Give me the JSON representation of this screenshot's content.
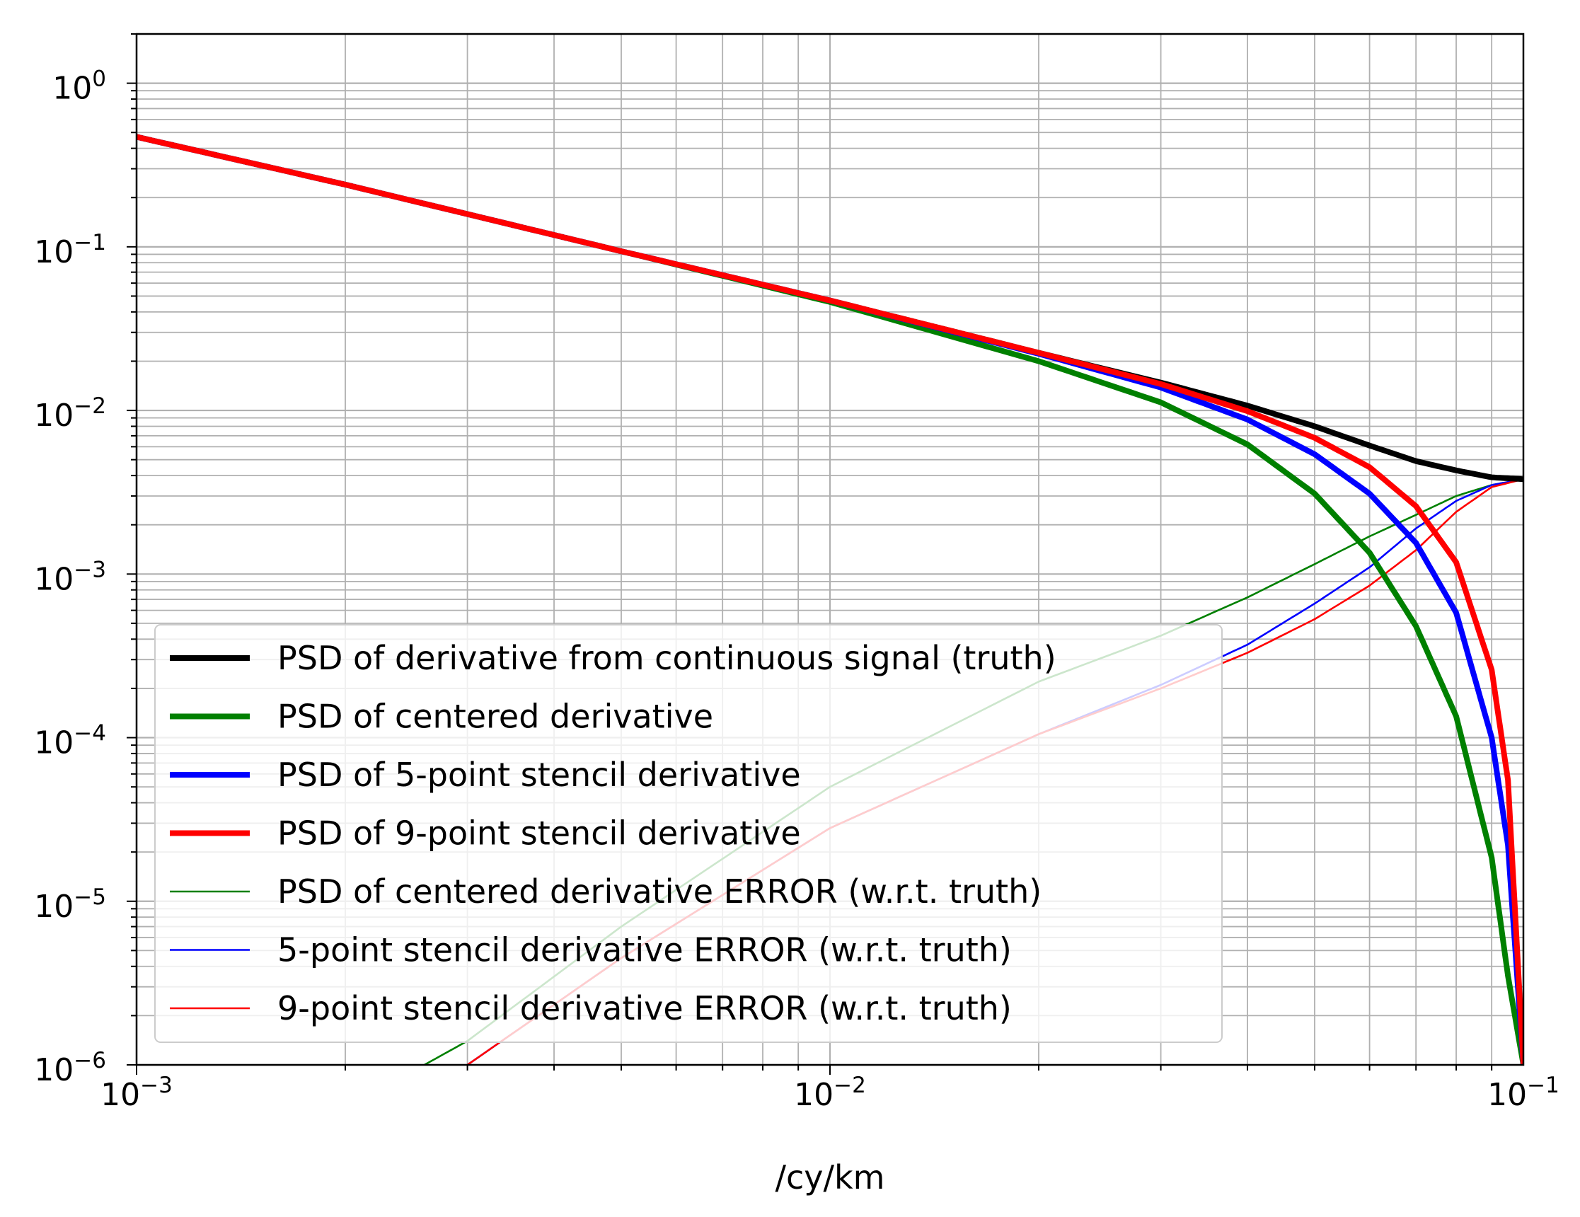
{
  "chart_data": {
    "type": "line",
    "title": "",
    "xlabel": "/cy/km",
    "ylabel": "",
    "x_scale": "log",
    "y_scale": "log",
    "xlim": [
      0.001,
      0.1
    ],
    "ylim": [
      1e-06,
      2
    ],
    "grid": "major and minor",
    "legend_position": "lower-left",
    "x_ticks": [
      {
        "value": 0.001,
        "base": "10",
        "exp": "−3"
      },
      {
        "value": 0.01,
        "base": "10",
        "exp": "−2"
      },
      {
        "value": 0.1,
        "base": "10",
        "exp": "−1"
      }
    ],
    "y_ticks": [
      {
        "value": 1,
        "base": "10",
        "exp": "0"
      },
      {
        "value": 0.1,
        "base": "10",
        "exp": "−1"
      },
      {
        "value": 0.01,
        "base": "10",
        "exp": "−2"
      },
      {
        "value": 0.001,
        "base": "10",
        "exp": "−3"
      },
      {
        "value": 0.0001,
        "base": "10",
        "exp": "−4"
      },
      {
        "value": 1e-05,
        "base": "10",
        "exp": "−5"
      },
      {
        "value": 1e-06,
        "base": "10",
        "exp": "−6"
      }
    ],
    "series": [
      {
        "name": "PSD of derivative from continuous signal (truth)",
        "color": "#000000",
        "style": "thick",
        "x": [
          0.001,
          0.002,
          0.005,
          0.01,
          0.02,
          0.03,
          0.04,
          0.05,
          0.06,
          0.07,
          0.08,
          0.09,
          0.1
        ],
        "y": [
          0.47,
          0.24,
          0.094,
          0.047,
          0.0225,
          0.0148,
          0.0107,
          0.008,
          0.0061,
          0.0049,
          0.0043,
          0.0039,
          0.0038
        ]
      },
      {
        "name": "PSD of centered derivative",
        "color": "#008000",
        "style": "thick",
        "x": [
          0.001,
          0.002,
          0.005,
          0.01,
          0.02,
          0.03,
          0.04,
          0.05,
          0.06,
          0.07,
          0.08,
          0.09,
          0.095,
          0.1
        ],
        "y": [
          0.47,
          0.24,
          0.094,
          0.046,
          0.02,
          0.0112,
          0.0062,
          0.0031,
          0.00135,
          0.00048,
          0.000135,
          1.85e-05,
          3.5e-06,
          1e-06
        ]
      },
      {
        "name": "PSD of 5-point stencil derivative",
        "color": "#0000ff",
        "style": "thick",
        "x": [
          0.001,
          0.002,
          0.005,
          0.01,
          0.02,
          0.03,
          0.04,
          0.05,
          0.06,
          0.07,
          0.08,
          0.09,
          0.095,
          0.1
        ],
        "y": [
          0.47,
          0.24,
          0.094,
          0.047,
          0.0222,
          0.0138,
          0.0088,
          0.0054,
          0.0031,
          0.00155,
          0.00058,
          0.0001,
          2.2e-05,
          1e-06
        ]
      },
      {
        "name": "PSD of 9-point stencil derivative",
        "color": "#ff0000",
        "style": "thick",
        "x": [
          0.001,
          0.002,
          0.005,
          0.01,
          0.02,
          0.03,
          0.04,
          0.05,
          0.06,
          0.07,
          0.08,
          0.09,
          0.095,
          0.1
        ],
        "y": [
          0.47,
          0.24,
          0.094,
          0.047,
          0.0225,
          0.0145,
          0.0099,
          0.0068,
          0.0045,
          0.0026,
          0.00118,
          0.00026,
          5.5e-05,
          1e-06
        ]
      },
      {
        "name": "PSD of centered derivative ERROR (w.r.t. truth)",
        "color": "#008000",
        "style": "thin",
        "x": [
          0.0026,
          0.003,
          0.005,
          0.01,
          0.02,
          0.03,
          0.04,
          0.05,
          0.06,
          0.07,
          0.08,
          0.09,
          0.1
        ],
        "y": [
          1e-06,
          1.4e-06,
          7e-06,
          5e-05,
          0.00022,
          0.00042,
          0.00072,
          0.00115,
          0.0017,
          0.0023,
          0.003,
          0.0035,
          0.0038
        ]
      },
      {
        "name": "5-point stencil derivative ERROR (w.r.t. truth)",
        "color": "#0000ff",
        "style": "thin",
        "x": [
          0.003,
          0.005,
          0.01,
          0.02,
          0.03,
          0.04,
          0.05,
          0.06,
          0.07,
          0.08,
          0.09,
          0.1
        ],
        "y": [
          1e-06,
          4.5e-06,
          2.8e-05,
          0.000105,
          0.00021,
          0.00037,
          0.00066,
          0.0011,
          0.0019,
          0.0028,
          0.0035,
          0.0038
        ]
      },
      {
        "name": "9-point stencil derivative ERROR (w.r.t. truth)",
        "color": "#ff0000",
        "style": "thin",
        "x": [
          0.003,
          0.005,
          0.01,
          0.02,
          0.03,
          0.04,
          0.05,
          0.06,
          0.07,
          0.08,
          0.09,
          0.1
        ],
        "y": [
          1e-06,
          4.5e-06,
          2.8e-05,
          0.000105,
          0.0002,
          0.00033,
          0.00053,
          0.00085,
          0.0014,
          0.0024,
          0.0034,
          0.0038
        ]
      }
    ]
  }
}
